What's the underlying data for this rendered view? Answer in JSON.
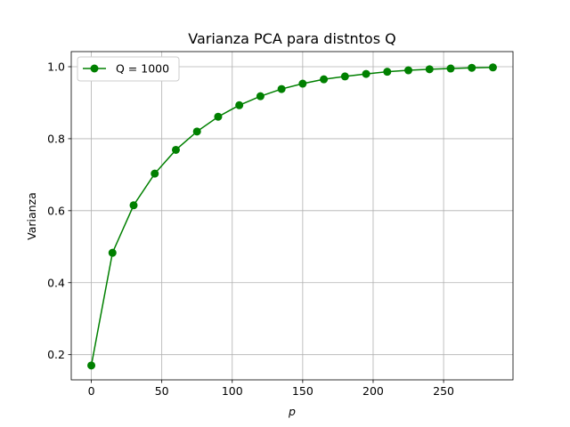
{
  "chart_data": {
    "type": "line",
    "title": "Varianza PCA para distntos Q",
    "xlabel": "p",
    "ylabel": "Varianza",
    "xlim": [
      -14.25,
      299.25
    ],
    "ylim": [
      0.13,
      1.042
    ],
    "xticks": [
      0,
      50,
      100,
      150,
      200,
      250
    ],
    "yticks": [
      0.2,
      0.4,
      0.6,
      0.8,
      1.0
    ],
    "xtick_labels": [
      "0",
      "50",
      "100",
      "150",
      "200",
      "250"
    ],
    "ytick_labels": [
      "0.2",
      "0.4",
      "0.6",
      "0.8",
      "1.0"
    ],
    "grid": true,
    "legend_placement": "upper-left",
    "series": [
      {
        "name": "Q = 1000",
        "color": "#008000",
        "marker": "circle",
        "x": [
          0,
          15,
          30,
          45,
          60,
          75,
          90,
          105,
          120,
          135,
          150,
          165,
          180,
          195,
          210,
          225,
          240,
          255,
          270,
          285
        ],
        "y": [
          0.17,
          0.483,
          0.615,
          0.703,
          0.769,
          0.82,
          0.861,
          0.893,
          0.918,
          0.938,
          0.953,
          0.965,
          0.973,
          0.98,
          0.986,
          0.99,
          0.993,
          0.995,
          0.997,
          0.998
        ]
      }
    ]
  }
}
